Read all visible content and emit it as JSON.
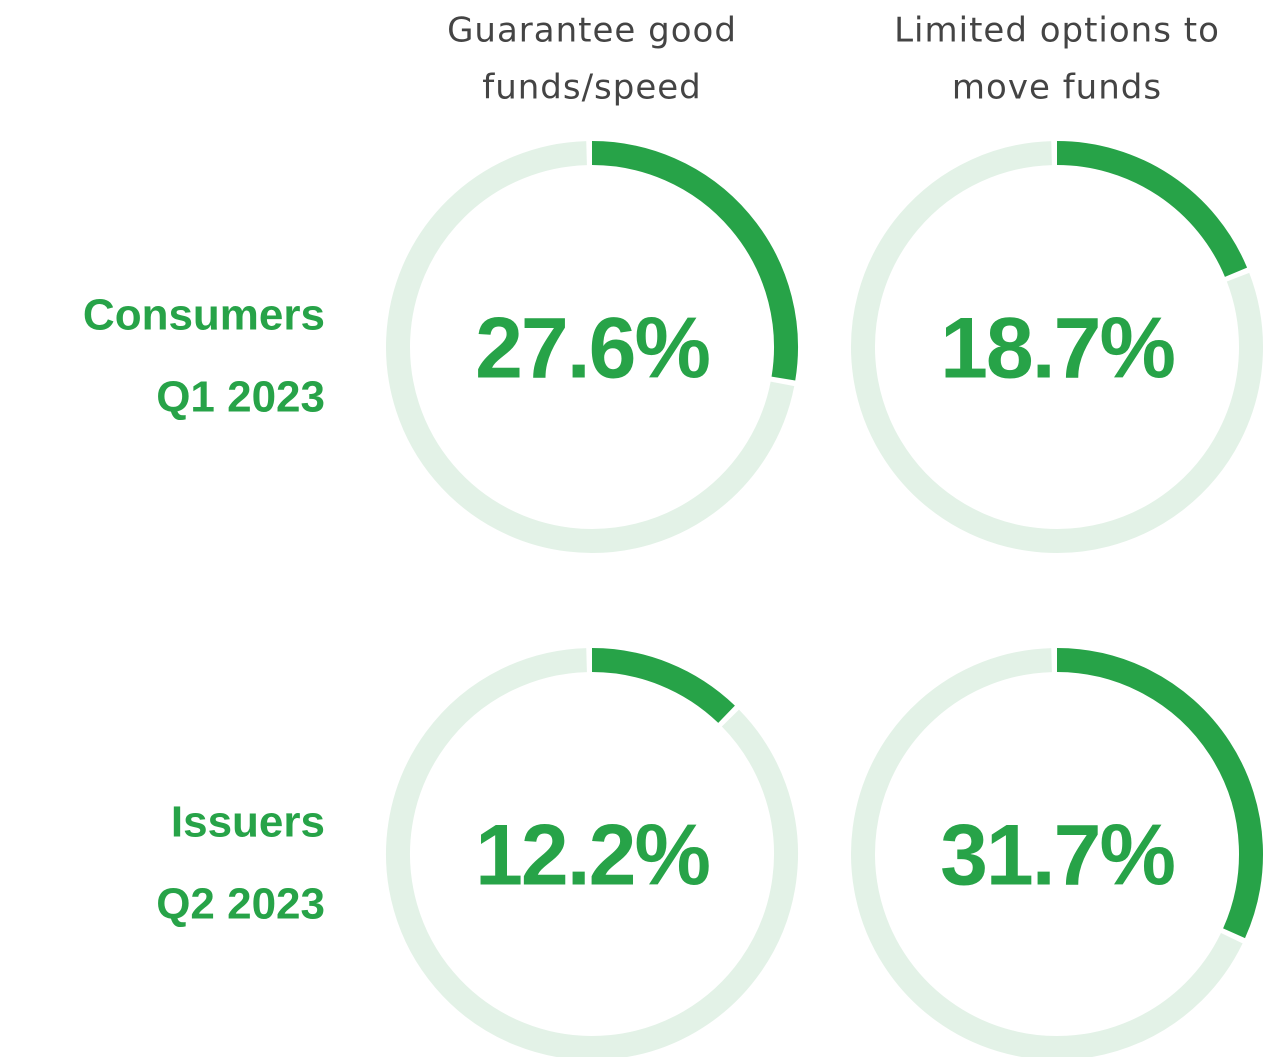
{
  "column_labels": [
    [
      "Guarantee good",
      "funds/speed"
    ],
    [
      "Limited options to",
      "move funds"
    ]
  ],
  "row_labels": [
    [
      "Consumers",
      "Q1 2023"
    ],
    [
      "Issuers",
      "Q2 2023"
    ]
  ],
  "chart_data": [
    {
      "type": "donut",
      "value": 27.6,
      "value_label": "27.6%",
      "ylim": [
        0,
        100
      ],
      "color": "#27a348",
      "track_color": "#e3f2e7"
    },
    {
      "type": "donut",
      "value": 18.7,
      "value_label": "18.7%",
      "ylim": [
        0,
        100
      ],
      "color": "#27a348",
      "track_color": "#e3f2e7"
    },
    {
      "type": "donut",
      "value": 12.2,
      "value_label": "12.2%",
      "ylim": [
        0,
        100
      ],
      "color": "#27a348",
      "track_color": "#e3f2e7"
    },
    {
      "type": "donut",
      "value": 31.7,
      "value_label": "31.7%",
      "ylim": [
        0,
        100
      ],
      "color": "#27a348",
      "track_color": "#e3f2e7"
    }
  ]
}
